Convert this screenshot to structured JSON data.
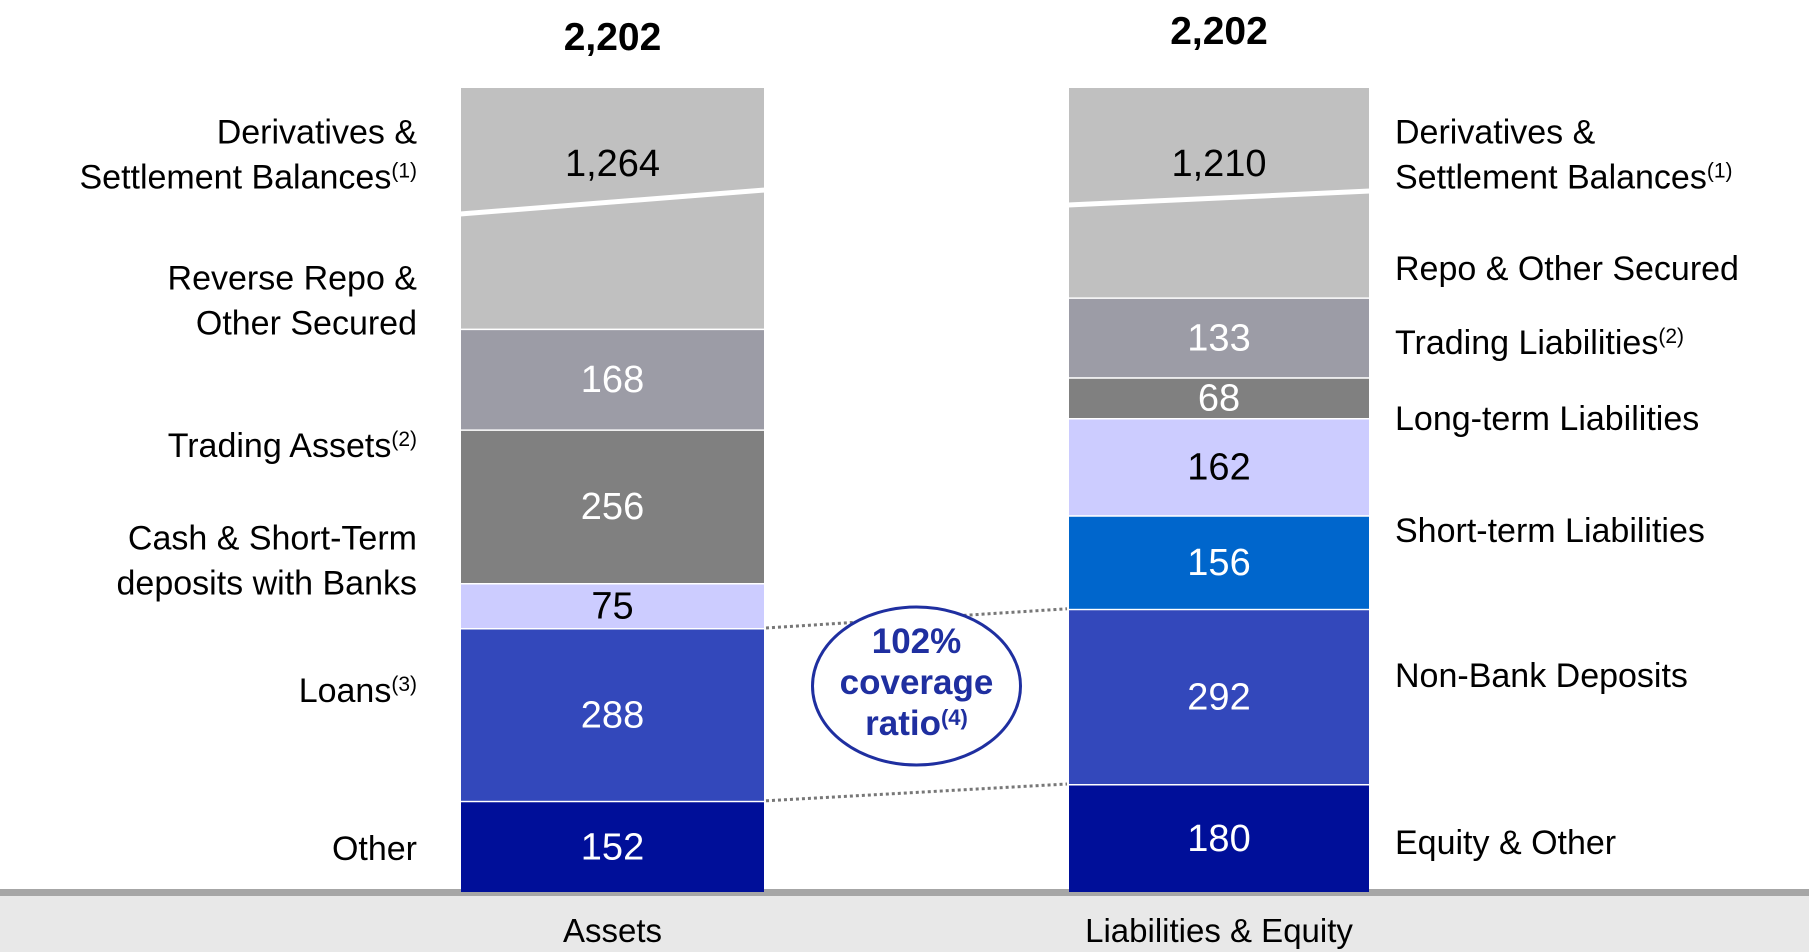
{
  "chart_data": {
    "type": "bar",
    "stacked": true,
    "categories": [
      "Assets",
      "Liabilities & Equity"
    ],
    "totals": [
      "2,202",
      "2,202"
    ],
    "stacks": [
      {
        "category": "Assets",
        "segments": [
          {
            "label": "Other",
            "sup": "",
            "value": 152,
            "value_text": "152",
            "color": "#000f99",
            "text_color": "#ffffff"
          },
          {
            "label": "Loans",
            "sup": "(3)",
            "value": 288,
            "value_text": "288",
            "color": "#3348bb",
            "text_color": "#ffffff"
          },
          {
            "label": "Cash & Short-Term|deposits with Banks",
            "sup": "",
            "value": 75,
            "value_text": "75",
            "color": "#ccccff",
            "text_color": "#000000"
          },
          {
            "label": "Trading Assets",
            "sup": "(2)",
            "value": 256,
            "value_text": "256",
            "color": "#808080",
            "text_color": "#ffffff"
          },
          {
            "label": "Reverse Repo &|Other Secured",
            "sup": "",
            "value": 168,
            "value_text": "168",
            "color": "#9c9ca6",
            "text_color": "#ffffff"
          },
          {
            "label": "Derivatives &|Settlement Balances",
            "sup": "(1)",
            "value": 1264,
            "value_text": "1,264",
            "color": "#c0c0c0",
            "text_color": "#000000",
            "broken": true
          }
        ]
      },
      {
        "category": "Liabilities & Equity",
        "segments": [
          {
            "label": "Equity & Other",
            "sup": "",
            "value": 180,
            "value_text": "180",
            "color": "#000f99",
            "text_color": "#ffffff"
          },
          {
            "label": "Non-Bank Deposits",
            "sup": "",
            "value": 292,
            "value_text": "292",
            "color": "#3348bb",
            "text_color": "#ffffff"
          },
          {
            "label": "Short-term Liabilities",
            "sup": "",
            "value": 156,
            "value_text": "156",
            "color": "#0066cc",
            "text_color": "#ffffff"
          },
          {
            "label": "Long-term Liabilities",
            "sup": "",
            "value": 162,
            "value_text": "162",
            "color": "#ccccff",
            "text_color": "#000000"
          },
          {
            "label": "Trading Liabilities",
            "sup": "(2)",
            "value": 68,
            "value_text": "68",
            "color": "#808080",
            "text_color": "#ffffff"
          },
          {
            "label": "Repo & Other Secured",
            "sup": "",
            "value": 133,
            "value_text": "133",
            "color": "#9c9ca6",
            "text_color": "#ffffff"
          },
          {
            "label": "Derivatives &|Settlement Balances",
            "sup": "(1)",
            "value": 1210,
            "value_text": "1,210",
            "color": "#c0c0c0",
            "text_color": "#000000",
            "broken": true
          }
        ]
      }
    ],
    "annotation": {
      "lines": [
        "102%",
        "coverage",
        "ratio"
      ],
      "sup": "(4)",
      "coverage_ratio_pct": 102
    },
    "axis_bar_color": "#a6a6a6",
    "footer_color": "#e8e8e8"
  }
}
